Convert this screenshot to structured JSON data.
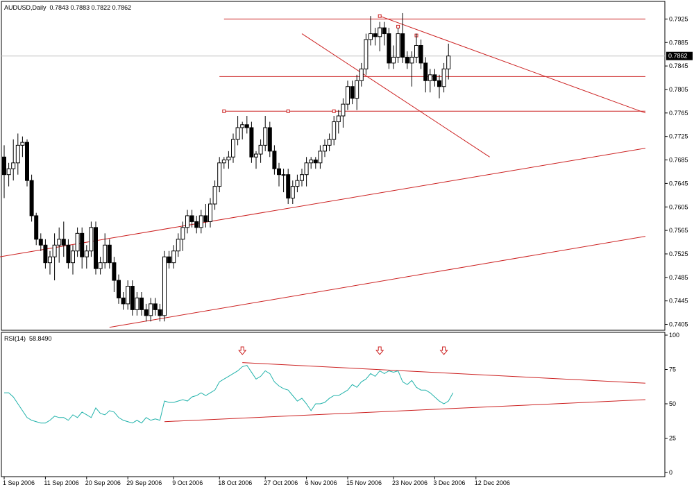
{
  "main_header": {
    "symbol": "AUDUSD,Daily",
    "ohlc": "0.7843 0.7883 0.7822 0.7862"
  },
  "rsi_header": {
    "name": "RSI(14)",
    "value": "58.8490"
  },
  "colors": {
    "up_fill": "#ffffff",
    "down_fill": "#000000",
    "wick": "#000000",
    "trendline": "#cc2020",
    "rsi_line": "#20b2aa",
    "bid_label_bg": "#000000",
    "bid_line": "#c0c0c0"
  },
  "chart_data": [
    {
      "type": "candlestick",
      "title": "AUDUSD,Daily",
      "ylim": [
        0.7395,
        0.7955
      ],
      "y_ticks": [
        "0.7925",
        "0.7885",
        "0.7845",
        "0.7805",
        "0.7765",
        "0.7725",
        "0.7685",
        "0.7645",
        "0.7605",
        "0.7565",
        "0.7525",
        "0.7485",
        "0.7445",
        "0.7405"
      ],
      "current_price": "0.7862",
      "x_labels": [
        "1 Sep 2006",
        "11 Sep 2006",
        "20 Sep 2006",
        "29 Sep 2006",
        "9 Oct 2006",
        "18 Oct 2006",
        "27 Oct 2006",
        "6 Nov 2006",
        "15 Nov 2006",
        "23 Nov 2006",
        "3 Dec 2006",
        "12 Dec 2006"
      ],
      "candles": [
        [
          0.769,
          0.771,
          0.762,
          0.766
        ],
        [
          0.766,
          0.768,
          0.764,
          0.767
        ],
        [
          0.767,
          0.772,
          0.765,
          0.768
        ],
        [
          0.768,
          0.773,
          0.766,
          0.771
        ],
        [
          0.771,
          0.7725,
          0.769,
          0.7715
        ],
        [
          0.7715,
          0.772,
          0.764,
          0.765
        ],
        [
          0.765,
          0.766,
          0.758,
          0.759
        ],
        [
          0.759,
          0.7595,
          0.754,
          0.755
        ],
        [
          0.755,
          0.756,
          0.753,
          0.754
        ],
        [
          0.754,
          0.755,
          0.75,
          0.751
        ],
        [
          0.751,
          0.753,
          0.749,
          0.752
        ],
        [
          0.752,
          0.756,
          0.748,
          0.754
        ],
        [
          0.754,
          0.757,
          0.751,
          0.755
        ],
        [
          0.755,
          0.758,
          0.752,
          0.754
        ],
        [
          0.754,
          0.755,
          0.75,
          0.751
        ],
        [
          0.751,
          0.754,
          0.749,
          0.753
        ],
        [
          0.753,
          0.757,
          0.752,
          0.756
        ],
        [
          0.756,
          0.757,
          0.75,
          0.752
        ],
        [
          0.752,
          0.754,
          0.75,
          0.753
        ],
        [
          0.753,
          0.758,
          0.752,
          0.757
        ],
        [
          0.757,
          0.758,
          0.749,
          0.75
        ],
        [
          0.75,
          0.752,
          0.749,
          0.751
        ],
        [
          0.751,
          0.756,
          0.75,
          0.754
        ],
        [
          0.754,
          0.755,
          0.75,
          0.751
        ],
        [
          0.751,
          0.752,
          0.746,
          0.748
        ],
        [
          0.748,
          0.749,
          0.744,
          0.745
        ],
        [
          0.745,
          0.746,
          0.743,
          0.744
        ],
        [
          0.744,
          0.748,
          0.743,
          0.747
        ],
        [
          0.747,
          0.748,
          0.742,
          0.743
        ],
        [
          0.743,
          0.746,
          0.742,
          0.745
        ],
        [
          0.745,
          0.746,
          0.742,
          0.743
        ],
        [
          0.743,
          0.744,
          0.741,
          0.742
        ],
        [
          0.742,
          0.745,
          0.741,
          0.744
        ],
        [
          0.744,
          0.745,
          0.742,
          0.743
        ],
        [
          0.743,
          0.744,
          0.741,
          0.742
        ],
        [
          0.742,
          0.753,
          0.741,
          0.752
        ],
        [
          0.752,
          0.753,
          0.75,
          0.751
        ],
        [
          0.751,
          0.754,
          0.75,
          0.753
        ],
        [
          0.753,
          0.756,
          0.752,
          0.755
        ],
        [
          0.755,
          0.758,
          0.753,
          0.757
        ],
        [
          0.757,
          0.76,
          0.756,
          0.759
        ],
        [
          0.759,
          0.76,
          0.757,
          0.758
        ],
        [
          0.758,
          0.759,
          0.756,
          0.757
        ],
        [
          0.757,
          0.76,
          0.756,
          0.759
        ],
        [
          0.759,
          0.761,
          0.757,
          0.758
        ],
        [
          0.758,
          0.762,
          0.757,
          0.761
        ],
        [
          0.761,
          0.765,
          0.76,
          0.764
        ],
        [
          0.764,
          0.769,
          0.763,
          0.768
        ],
        [
          0.768,
          0.769,
          0.767,
          0.7685
        ],
        [
          0.7685,
          0.77,
          0.767,
          0.769
        ],
        [
          0.769,
          0.773,
          0.768,
          0.772
        ],
        [
          0.772,
          0.776,
          0.771,
          0.774
        ],
        [
          0.774,
          0.775,
          0.772,
          0.7745
        ],
        [
          0.7745,
          0.776,
          0.773,
          0.774
        ],
        [
          0.774,
          0.775,
          0.768,
          0.769
        ],
        [
          0.769,
          0.77,
          0.767,
          0.7695
        ],
        [
          0.7695,
          0.772,
          0.768,
          0.771
        ],
        [
          0.771,
          0.776,
          0.77,
          0.774
        ],
        [
          0.774,
          0.775,
          0.769,
          0.77
        ],
        [
          0.77,
          0.771,
          0.766,
          0.767
        ],
        [
          0.767,
          0.768,
          0.764,
          0.766
        ],
        [
          0.766,
          0.767,
          0.763,
          0.766
        ],
        [
          0.766,
          0.767,
          0.761,
          0.762
        ],
        [
          0.762,
          0.765,
          0.761,
          0.764
        ],
        [
          0.764,
          0.766,
          0.763,
          0.765
        ],
        [
          0.765,
          0.767,
          0.764,
          0.766
        ],
        [
          0.766,
          0.769,
          0.764,
          0.768
        ],
        [
          0.768,
          0.769,
          0.767,
          0.7685
        ],
        [
          0.7685,
          0.769,
          0.767,
          0.768
        ],
        [
          0.768,
          0.771,
          0.767,
          0.77
        ],
        [
          0.77,
          0.772,
          0.769,
          0.771
        ],
        [
          0.771,
          0.773,
          0.77,
          0.772
        ],
        [
          0.772,
          0.776,
          0.771,
          0.775
        ],
        [
          0.775,
          0.777,
          0.773,
          0.776
        ],
        [
          0.776,
          0.779,
          0.774,
          0.778
        ],
        [
          0.778,
          0.782,
          0.777,
          0.781
        ],
        [
          0.781,
          0.782,
          0.778,
          0.779
        ],
        [
          0.779,
          0.783,
          0.777,
          0.782
        ],
        [
          0.782,
          0.785,
          0.781,
          0.784
        ],
        [
          0.784,
          0.79,
          0.783,
          0.789
        ],
        [
          0.789,
          0.793,
          0.788,
          0.79
        ],
        [
          0.79,
          0.791,
          0.788,
          0.7895
        ],
        [
          0.7895,
          0.792,
          0.787,
          0.791
        ],
        [
          0.791,
          0.792,
          0.788,
          0.79
        ],
        [
          0.79,
          0.791,
          0.784,
          0.785
        ],
        [
          0.785,
          0.788,
          0.784,
          0.786
        ],
        [
          0.786,
          0.791,
          0.785,
          0.79
        ],
        [
          0.79,
          0.7935,
          0.785,
          0.786
        ],
        [
          0.786,
          0.787,
          0.784,
          0.785
        ],
        [
          0.785,
          0.787,
          0.781,
          0.786
        ],
        [
          0.786,
          0.79,
          0.785,
          0.788
        ],
        [
          0.788,
          0.789,
          0.784,
          0.785
        ],
        [
          0.785,
          0.786,
          0.78,
          0.782
        ],
        [
          0.782,
          0.784,
          0.78,
          0.783
        ],
        [
          0.783,
          0.784,
          0.781,
          0.782
        ],
        [
          0.782,
          0.783,
          0.779,
          0.781
        ],
        [
          0.781,
          0.785,
          0.78,
          0.784
        ],
        [
          0.784,
          0.7883,
          0.7822,
          0.7862
        ]
      ],
      "trendlines": [
        {
          "label": "resistance-top",
          "from": [
            48,
            0.7925
          ],
          "to": [
            140,
            0.7925
          ]
        },
        {
          "label": "support-mid",
          "from": [
            47,
            0.7827
          ],
          "to": [
            140,
            0.7827
          ]
        },
        {
          "label": "support-low",
          "from": [
            48,
            0.7768
          ],
          "to": [
            140,
            0.7768
          ]
        },
        {
          "label": "channel-down-top",
          "from": [
            82,
            0.793
          ],
          "to": [
            140,
            0.7765
          ]
        },
        {
          "label": "channel-down-bottom",
          "from": [
            65,
            0.79
          ],
          "to": [
            106,
            0.769
          ]
        },
        {
          "label": "uptrend-upper",
          "from": [
            -1,
            0.752
          ],
          "to": [
            140,
            0.7705
          ]
        },
        {
          "label": "uptrend-lower",
          "from": [
            23,
            0.74
          ],
          "to": [
            140,
            0.7555
          ]
        }
      ]
    },
    {
      "type": "line",
      "title": "RSI(14)",
      "ylim": [
        0,
        100
      ],
      "y_ticks": [
        "100",
        "75",
        "50",
        "25",
        "0"
      ],
      "values": [
        58,
        58,
        55,
        50,
        45,
        40,
        38,
        37,
        36,
        36,
        38,
        41,
        40,
        40,
        38,
        42,
        40,
        44,
        42,
        40,
        47,
        43,
        42,
        45,
        44,
        40,
        38,
        37,
        36,
        38,
        36,
        40,
        38,
        39,
        38,
        52,
        51,
        51,
        52,
        53,
        52,
        55,
        56,
        58,
        56,
        58,
        60,
        66,
        68,
        70,
        72,
        74,
        77,
        78,
        73,
        68,
        70,
        74,
        72,
        66,
        63,
        61,
        60,
        56,
        52,
        54,
        50,
        45,
        50,
        50,
        51,
        54,
        56,
        56,
        58,
        60,
        64,
        62,
        66,
        68,
        72,
        70,
        74,
        72,
        74,
        73,
        74,
        66,
        64,
        67,
        62,
        60,
        60,
        58,
        55,
        52,
        50,
        52,
        58
      ],
      "trendlines": [
        {
          "label": "rsi-resistance",
          "from": [
            52,
            80
          ],
          "to": [
            140,
            65
          ]
        },
        {
          "label": "rsi-support",
          "from": [
            35,
            37
          ],
          "to": [
            140,
            53
          ]
        }
      ],
      "markers": [
        52,
        82,
        96
      ]
    }
  ]
}
